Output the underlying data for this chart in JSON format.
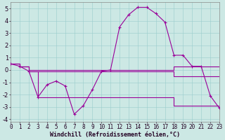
{
  "xlabel": "Windchill (Refroidissement éolien,°C)",
  "xlim": [
    0,
    23
  ],
  "ylim": [
    -4.2,
    5.5
  ],
  "yticks": [
    -4,
    -3,
    -2,
    -1,
    0,
    1,
    2,
    3,
    4,
    5
  ],
  "xticks": [
    0,
    1,
    2,
    3,
    4,
    5,
    6,
    7,
    8,
    9,
    10,
    11,
    12,
    13,
    14,
    15,
    16,
    17,
    18,
    19,
    20,
    21,
    22,
    23
  ],
  "bg_color": "#cce8e4",
  "grid_color": "#99cccc",
  "line_color": "#990099",
  "hours": [
    0,
    1,
    2,
    3,
    4,
    5,
    6,
    7,
    8,
    9,
    10,
    11,
    12,
    13,
    14,
    15,
    16,
    17,
    18,
    19,
    20,
    21,
    22,
    23
  ],
  "series_main": [
    0.5,
    0.3,
    -0.1,
    -2.2,
    -1.2,
    -0.9,
    -1.3,
    -3.6,
    -2.9,
    -1.6,
    -0.1,
    0.0,
    3.5,
    4.5,
    5.1,
    5.1,
    4.6,
    3.9,
    1.2,
    1.2,
    0.3,
    0.3,
    -2.1,
    -3.1
  ],
  "series_line1": [
    0.5,
    0.3,
    0.0,
    0.0,
    0.0,
    0.0,
    0.0,
    0.0,
    0.0,
    0.0,
    0.0,
    0.0,
    0.0,
    0.0,
    0.0,
    0.0,
    0.0,
    0.0,
    0.3,
    0.3,
    0.3,
    0.3,
    0.3,
    0.3
  ],
  "series_line2": [
    0.5,
    0.3,
    -0.1,
    -0.1,
    -0.1,
    -0.1,
    -0.1,
    -0.1,
    -0.1,
    -0.1,
    -0.1,
    -0.1,
    -0.1,
    -0.1,
    -0.1,
    -0.1,
    -0.1,
    -0.1,
    -0.5,
    -0.5,
    -0.5,
    -0.5,
    -0.5,
    -0.5
  ],
  "series_line3": [
    0.5,
    0.3,
    -0.1,
    -2.2,
    -2.2,
    -2.2,
    -2.2,
    -2.2,
    -2.2,
    -2.2,
    -2.2,
    -2.2,
    -2.2,
    -2.2,
    -2.2,
    -2.2,
    -2.2,
    -2.2,
    -2.9,
    -2.9,
    -2.9,
    -2.9,
    -2.9,
    -2.9
  ],
  "tick_fontsize": 5.5,
  "xlabel_fontsize": 6.0
}
